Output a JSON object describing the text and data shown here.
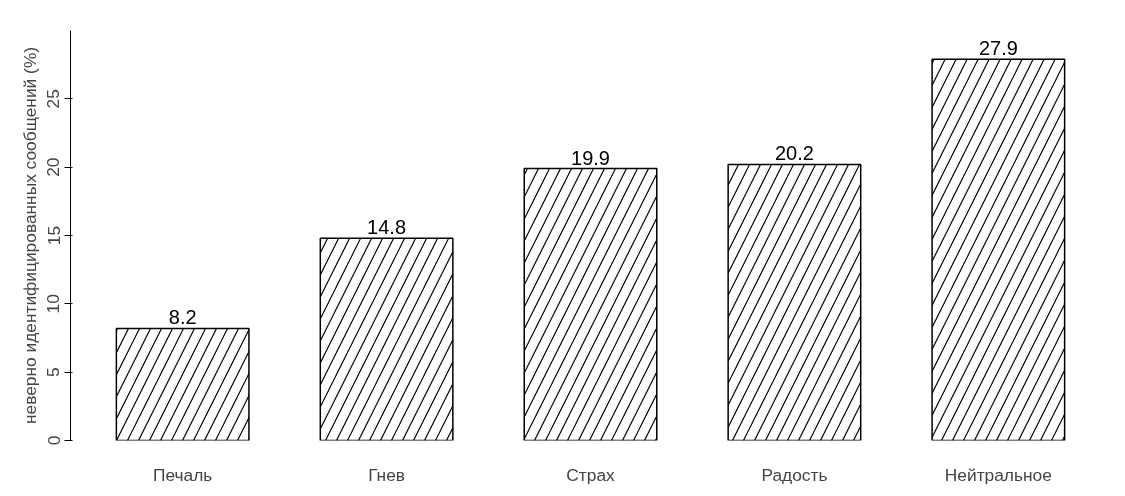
{
  "chart_data": {
    "type": "bar",
    "ylabel": "неверно идентифицированных сообщений (%)",
    "categories": [
      "Печаль",
      "Гнев",
      "Страх",
      "Радость",
      "Нейтральное"
    ],
    "values": [
      8.2,
      14.8,
      19.9,
      20.2,
      27.9
    ],
    "color": "#ffffff",
    "ylim": [
      0,
      30
    ],
    "yticks": [
      0,
      5,
      10,
      15,
      20,
      25
    ],
    "grid": false,
    "data_labels": true
  }
}
